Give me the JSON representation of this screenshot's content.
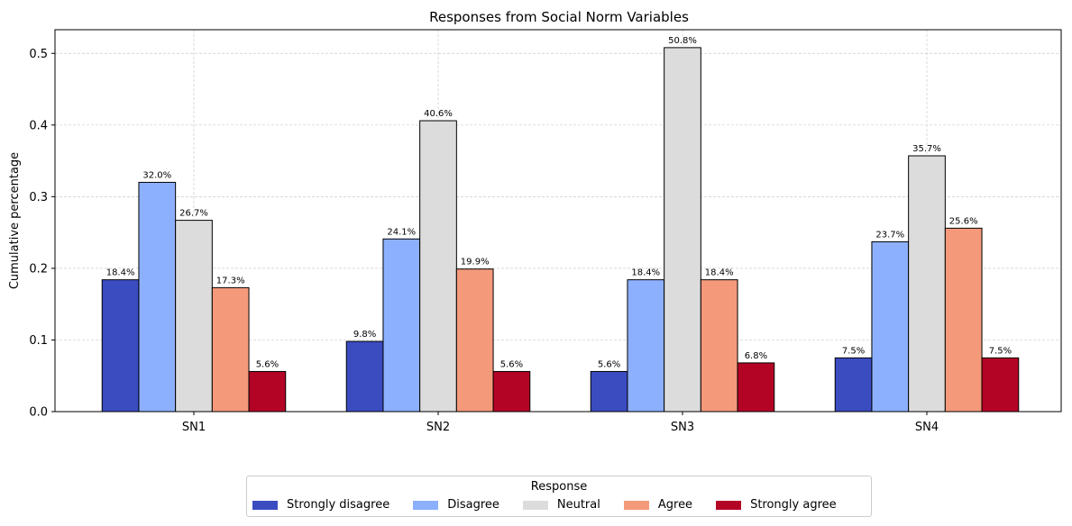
{
  "chart_data": {
    "type": "bar",
    "title": "Responses from Social Norm Variables",
    "xlabel": "",
    "ylabel": "Cumulative percentage",
    "categories": [
      "SN1",
      "SN2",
      "SN3",
      "SN4"
    ],
    "ylim": [
      0,
      0.533
    ],
    "yticks": [
      "0.0",
      "0.1",
      "0.2",
      "0.3",
      "0.4",
      "0.5"
    ],
    "ytick_values": [
      0,
      0.1,
      0.2,
      0.3,
      0.4,
      0.5
    ],
    "grid": true,
    "legend_title": "Response",
    "legend_position": "bottom-center",
    "series": [
      {
        "name": "Strongly disagree",
        "color": "#3b4cc0",
        "values": [
          0.184,
          0.098,
          0.056,
          0.075
        ],
        "labels": [
          "18.4%",
          "9.8%",
          "5.6%",
          "7.5%"
        ]
      },
      {
        "name": "Disagree",
        "color": "#8db0fe",
        "values": [
          0.32,
          0.241,
          0.184,
          0.237
        ],
        "labels": [
          "32.0%",
          "24.1%",
          "18.4%",
          "23.7%"
        ]
      },
      {
        "name": "Neutral",
        "color": "#dddcdc",
        "values": [
          0.267,
          0.406,
          0.508,
          0.357
        ],
        "labels": [
          "26.7%",
          "40.6%",
          "50.8%",
          "35.7%"
        ]
      },
      {
        "name": "Agree",
        "color": "#f49a7b",
        "values": [
          0.173,
          0.199,
          0.184,
          0.256
        ],
        "labels": [
          "17.3%",
          "19.9%",
          "18.4%",
          "25.6%"
        ]
      },
      {
        "name": "Strongly agree",
        "color": "#b40426",
        "values": [
          0.056,
          0.056,
          0.068,
          0.075
        ],
        "labels": [
          "5.6%",
          "5.6%",
          "6.8%",
          "7.5%"
        ]
      }
    ]
  }
}
